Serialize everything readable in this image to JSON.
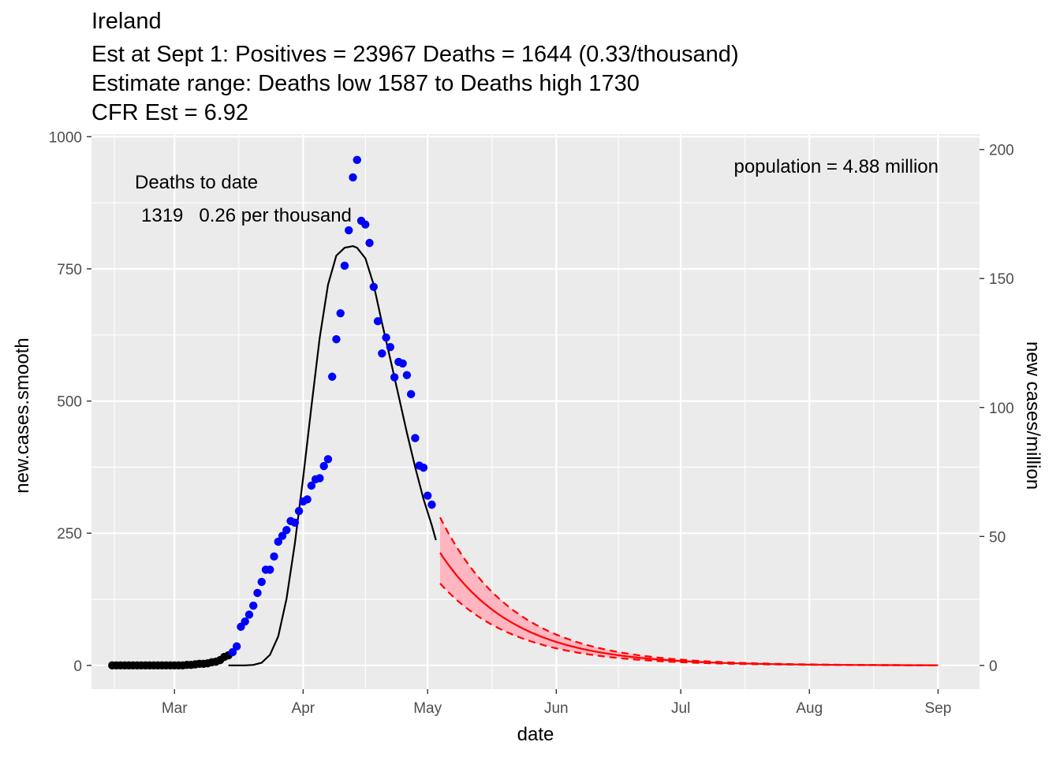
{
  "chart_data": {
    "type": "line",
    "title_lines": [
      "Ireland",
      "Est at Sept 1: Positives = 23967 Deaths = 1644 (0.33/thousand)",
      "Estimate range: Deaths low 1587 to Deaths high 1730",
      "CFR Est = 6.92"
    ],
    "xlabel": "date",
    "ylabel": "new.cases.smooth",
    "y2label": "new cases/million",
    "x_range": [
      "2020-02-10",
      "2020-09-11"
    ],
    "xlim": [
      "2020-02-10",
      "2020-09-11"
    ],
    "ylim": [
      -45,
      1005
    ],
    "y2lim": [
      -9.2,
      206
    ],
    "x_ticks": [
      {
        "date": "2020-03-01",
        "label": "Mar"
      },
      {
        "date": "2020-04-01",
        "label": "Apr"
      },
      {
        "date": "2020-05-01",
        "label": "May"
      },
      {
        "date": "2020-06-01",
        "label": "Jun"
      },
      {
        "date": "2020-07-01",
        "label": "Jul"
      },
      {
        "date": "2020-08-01",
        "label": "Aug"
      },
      {
        "date": "2020-09-01",
        "label": "Sep"
      }
    ],
    "y_ticks": [
      0,
      250,
      500,
      750,
      1000
    ],
    "y2_ticks": [
      0,
      50,
      100,
      150,
      200
    ],
    "grid": true,
    "annotations": {
      "deaths_heading": "Deaths to date",
      "deaths_values": "1319   0.26 per thousand",
      "population": "population = 4.88 million"
    },
    "series": [
      {
        "kind": "points-early",
        "color": "#000000",
        "points": [
          [
            "2020-02-15",
            0
          ],
          [
            "2020-02-16",
            0
          ],
          [
            "2020-02-17",
            0
          ],
          [
            "2020-02-18",
            0
          ],
          [
            "2020-02-19",
            0
          ],
          [
            "2020-02-20",
            0
          ],
          [
            "2020-02-21",
            0
          ],
          [
            "2020-02-22",
            0
          ],
          [
            "2020-02-23",
            0
          ],
          [
            "2020-02-24",
            0
          ],
          [
            "2020-02-25",
            0
          ],
          [
            "2020-02-26",
            0
          ],
          [
            "2020-02-27",
            0
          ],
          [
            "2020-02-28",
            0
          ],
          [
            "2020-02-29",
            0
          ],
          [
            "2020-03-01",
            0
          ],
          [
            "2020-03-02",
            0
          ],
          [
            "2020-03-03",
            0
          ],
          [
            "2020-03-04",
            1
          ],
          [
            "2020-03-05",
            1
          ],
          [
            "2020-03-06",
            2
          ],
          [
            "2020-03-07",
            3
          ],
          [
            "2020-03-08",
            3
          ],
          [
            "2020-03-09",
            4
          ],
          [
            "2020-03-10",
            6
          ],
          [
            "2020-03-11",
            7
          ],
          [
            "2020-03-12",
            10
          ],
          [
            "2020-03-13",
            16
          ],
          [
            "2020-03-14",
            19
          ]
        ]
      },
      {
        "kind": "points",
        "color": "#0000ff",
        "points": [
          [
            "2020-03-15",
            25
          ],
          [
            "2020-03-16",
            36
          ],
          [
            "2020-03-17",
            73
          ],
          [
            "2020-03-18",
            83
          ],
          [
            "2020-03-19",
            96
          ],
          [
            "2020-03-20",
            113
          ],
          [
            "2020-03-21",
            137
          ],
          [
            "2020-03-22",
            158
          ],
          [
            "2020-03-23",
            181
          ],
          [
            "2020-03-24",
            181
          ],
          [
            "2020-03-25",
            206
          ],
          [
            "2020-03-26",
            234
          ],
          [
            "2020-03-27",
            245
          ],
          [
            "2020-03-28",
            256
          ],
          [
            "2020-03-29",
            273
          ],
          [
            "2020-03-30",
            270
          ],
          [
            "2020-03-31",
            292
          ],
          [
            "2020-04-01",
            310
          ],
          [
            "2020-04-02",
            314
          ],
          [
            "2020-04-03",
            340
          ],
          [
            "2020-04-04",
            352
          ],
          [
            "2020-04-05",
            354
          ],
          [
            "2020-04-06",
            377
          ],
          [
            "2020-04-07",
            390
          ],
          [
            "2020-04-08",
            546
          ],
          [
            "2020-04-09",
            617
          ],
          [
            "2020-04-10",
            666
          ],
          [
            "2020-04-11",
            756
          ],
          [
            "2020-04-12",
            823
          ],
          [
            "2020-04-13",
            923
          ],
          [
            "2020-04-14",
            956
          ],
          [
            "2020-04-15",
            841
          ],
          [
            "2020-04-16",
            834
          ],
          [
            "2020-04-17",
            799
          ],
          [
            "2020-04-18",
            716
          ],
          [
            "2020-04-19",
            651
          ],
          [
            "2020-04-20",
            590
          ],
          [
            "2020-04-21",
            620
          ],
          [
            "2020-04-22",
            602
          ],
          [
            "2020-04-23",
            545
          ],
          [
            "2020-04-24",
            574
          ],
          [
            "2020-04-25",
            571
          ],
          [
            "2020-04-26",
            549
          ],
          [
            "2020-04-27",
            513
          ],
          [
            "2020-04-28",
            430
          ],
          [
            "2020-04-29",
            378
          ],
          [
            "2020-04-30",
            374
          ],
          [
            "2020-05-01",
            321
          ],
          [
            "2020-05-02",
            304
          ]
        ]
      },
      {
        "kind": "fit-line",
        "color": "#000000",
        "points": [
          [
            "2020-03-14",
            0
          ],
          [
            "2020-03-16",
            0
          ],
          [
            "2020-03-18",
            0
          ],
          [
            "2020-03-20",
            1
          ],
          [
            "2020-03-22",
            5
          ],
          [
            "2020-03-24",
            20
          ],
          [
            "2020-03-26",
            55
          ],
          [
            "2020-03-28",
            126
          ],
          [
            "2020-03-30",
            230
          ],
          [
            "2020-04-01",
            354
          ],
          [
            "2020-04-03",
            490
          ],
          [
            "2020-04-05",
            620
          ],
          [
            "2020-04-07",
            720
          ],
          [
            "2020-04-09",
            775
          ],
          [
            "2020-04-11",
            790
          ],
          [
            "2020-04-13",
            793
          ],
          [
            "2020-04-14",
            790
          ],
          [
            "2020-04-16",
            770
          ],
          [
            "2020-04-18",
            720
          ],
          [
            "2020-04-20",
            648
          ],
          [
            "2020-04-22",
            580
          ],
          [
            "2020-04-24",
            510
          ],
          [
            "2020-04-26",
            440
          ],
          [
            "2020-04-28",
            375
          ],
          [
            "2020-04-30",
            315
          ],
          [
            "2020-05-02",
            265
          ],
          [
            "2020-05-03",
            237
          ]
        ]
      },
      {
        "kind": "forecast",
        "color": "#ff0000",
        "band_color": "#ffb6c1",
        "start": "2020-05-04",
        "end": "2020-09-01",
        "central": {
          "start_value": 213,
          "decay_per_day": 0.056
        },
        "upper": {
          "start_value": 280,
          "decay_per_day": 0.056
        },
        "lower": {
          "start_value": 155,
          "decay_per_day": 0.056
        }
      }
    ]
  }
}
